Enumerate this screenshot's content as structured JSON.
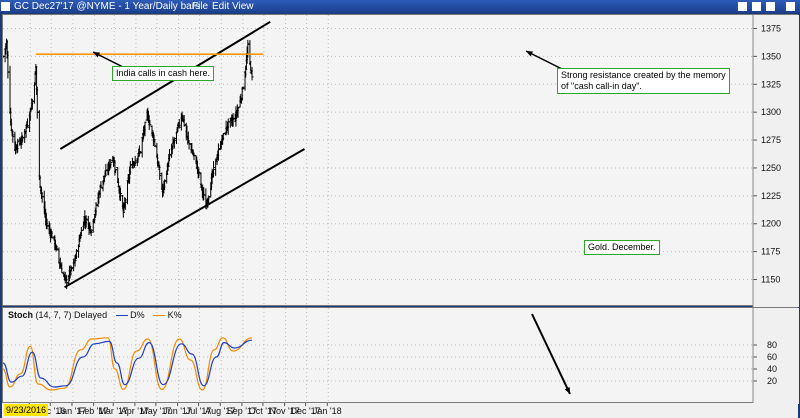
{
  "window": {
    "title": "GC Dec27'17 @NYME - 1 Year/Daily bars",
    "menus": [
      "File",
      "Edit",
      "View"
    ],
    "accent": "#1b3f8c"
  },
  "annotations": {
    "india": "India calls in cash here.",
    "resistance_line1": "Strong resistance created by the memory",
    "resistance_line2": "of \"cash call-in day\".",
    "gold": "Gold. December."
  },
  "stoch_legend": {
    "name": "Stoch",
    "params": "(14, 7, 7) Delayed",
    "d_label": "D%",
    "k_label": "K%"
  },
  "start_date": "9/23/2016",
  "chart_data": [
    {
      "type": "ohlc",
      "title": "GC Dec27'17 @NYME - 1 Year/Daily bars",
      "ylim": [
        1130,
        1390
      ],
      "yticks": [
        1150,
        1175,
        1200,
        1225,
        1250,
        1275,
        1300,
        1325,
        1350,
        1375
      ],
      "xticks": [
        "Nov '16",
        "Dec '16",
        "Jan '17",
        "Feb '17",
        "Mar '17",
        "Apr '17",
        "May '17",
        "Jun '17",
        "Jul '17",
        "Aug '17",
        "Sep '17",
        "Oct '17",
        "Nov '17",
        "Dec '17",
        "Jan '18"
      ],
      "x_start": "2016-09-23",
      "bar_color": "#000000",
      "approx_close": [
        {
          "date": "2016-09-23",
          "value": 1350
        },
        {
          "date": "2016-09-28",
          "value": 1362
        },
        {
          "date": "2016-10-04",
          "value": 1290
        },
        {
          "date": "2016-10-10",
          "value": 1268
        },
        {
          "date": "2016-10-20",
          "value": 1275
        },
        {
          "date": "2016-10-28",
          "value": 1290
        },
        {
          "date": "2016-11-04",
          "value": 1310
        },
        {
          "date": "2016-11-09",
          "value": 1340
        },
        {
          "date": "2016-11-14",
          "value": 1240
        },
        {
          "date": "2016-11-24",
          "value": 1200
        },
        {
          "date": "2016-12-05",
          "value": 1185
        },
        {
          "date": "2016-12-15",
          "value": 1160
        },
        {
          "date": "2016-12-22",
          "value": 1148
        },
        {
          "date": "2017-01-03",
          "value": 1165
        },
        {
          "date": "2017-01-17",
          "value": 1205
        },
        {
          "date": "2017-01-27",
          "value": 1195
        },
        {
          "date": "2017-02-10",
          "value": 1235
        },
        {
          "date": "2017-02-27",
          "value": 1260
        },
        {
          "date": "2017-03-07",
          "value": 1235
        },
        {
          "date": "2017-03-14",
          "value": 1210
        },
        {
          "date": "2017-03-24",
          "value": 1250
        },
        {
          "date": "2017-04-07",
          "value": 1265
        },
        {
          "date": "2017-04-17",
          "value": 1298
        },
        {
          "date": "2017-04-27",
          "value": 1275
        },
        {
          "date": "2017-05-09",
          "value": 1228
        },
        {
          "date": "2017-05-19",
          "value": 1260
        },
        {
          "date": "2017-06-06",
          "value": 1298
        },
        {
          "date": "2017-06-14",
          "value": 1275
        },
        {
          "date": "2017-06-26",
          "value": 1255
        },
        {
          "date": "2017-07-10",
          "value": 1215
        },
        {
          "date": "2017-07-20",
          "value": 1245
        },
        {
          "date": "2017-07-31",
          "value": 1272
        },
        {
          "date": "2017-08-10",
          "value": 1288
        },
        {
          "date": "2017-08-21",
          "value": 1295
        },
        {
          "date": "2017-08-30",
          "value": 1315
        },
        {
          "date": "2017-09-05",
          "value": 1340
        },
        {
          "date": "2017-09-08",
          "value": 1358
        },
        {
          "date": "2017-09-14",
          "value": 1330
        }
      ],
      "resistance_level": 1352,
      "resistance_color": "#ff9900",
      "channel_upper": {
        "from": {
          "date": "2016-12-14",
          "value": 1267
        },
        "to": {
          "date": "2017-10-10",
          "value": 1381
        }
      },
      "channel_lower": {
        "from": {
          "date": "2016-12-20",
          "value": 1143
        },
        "to": {
          "date": "2017-11-28",
          "value": 1267
        }
      }
    },
    {
      "type": "line",
      "title": "Stoch (14, 7, 7) Delayed",
      "ylim": [
        0,
        100
      ],
      "yticks": [
        20,
        40,
        60,
        80
      ],
      "series": [
        {
          "name": "D%",
          "color": "#1f3fbf"
        },
        {
          "name": "K%",
          "color": "#f08c00"
        }
      ],
      "d_values": [
        {
          "date": "2016-09-23",
          "value": 50
        },
        {
          "date": "2016-10-05",
          "value": 18
        },
        {
          "date": "2016-10-20",
          "value": 28
        },
        {
          "date": "2016-11-04",
          "value": 68
        },
        {
          "date": "2016-11-16",
          "value": 25
        },
        {
          "date": "2016-12-05",
          "value": 10
        },
        {
          "date": "2016-12-22",
          "value": 12
        },
        {
          "date": "2017-01-15",
          "value": 60
        },
        {
          "date": "2017-02-01",
          "value": 82
        },
        {
          "date": "2017-02-22",
          "value": 86
        },
        {
          "date": "2017-03-05",
          "value": 50
        },
        {
          "date": "2017-03-16",
          "value": 14
        },
        {
          "date": "2017-04-05",
          "value": 58
        },
        {
          "date": "2017-04-20",
          "value": 84
        },
        {
          "date": "2017-05-10",
          "value": 14
        },
        {
          "date": "2017-06-05",
          "value": 82
        },
        {
          "date": "2017-06-20",
          "value": 65
        },
        {
          "date": "2017-07-07",
          "value": 12
        },
        {
          "date": "2017-07-25",
          "value": 60
        },
        {
          "date": "2017-08-05",
          "value": 84
        },
        {
          "date": "2017-08-20",
          "value": 75
        },
        {
          "date": "2017-09-14",
          "value": 88
        }
      ],
      "k_values": [
        {
          "date": "2016-09-23",
          "value": 40
        },
        {
          "date": "2016-10-03",
          "value": 10
        },
        {
          "date": "2016-10-18",
          "value": 32
        },
        {
          "date": "2016-11-01",
          "value": 78
        },
        {
          "date": "2016-11-12",
          "value": 15
        },
        {
          "date": "2016-12-01",
          "value": 5
        },
        {
          "date": "2016-12-20",
          "value": 8
        },
        {
          "date": "2017-01-12",
          "value": 72
        },
        {
          "date": "2017-01-28",
          "value": 90
        },
        {
          "date": "2017-02-20",
          "value": 92
        },
        {
          "date": "2017-03-02",
          "value": 40
        },
        {
          "date": "2017-03-14",
          "value": 6
        },
        {
          "date": "2017-04-02",
          "value": 70
        },
        {
          "date": "2017-04-18",
          "value": 90
        },
        {
          "date": "2017-05-08",
          "value": 6
        },
        {
          "date": "2017-06-02",
          "value": 90
        },
        {
          "date": "2017-06-18",
          "value": 55
        },
        {
          "date": "2017-07-05",
          "value": 5
        },
        {
          "date": "2017-07-22",
          "value": 72
        },
        {
          "date": "2017-08-03",
          "value": 92
        },
        {
          "date": "2017-08-18",
          "value": 70
        },
        {
          "date": "2017-09-14",
          "value": 92
        }
      ]
    }
  ]
}
